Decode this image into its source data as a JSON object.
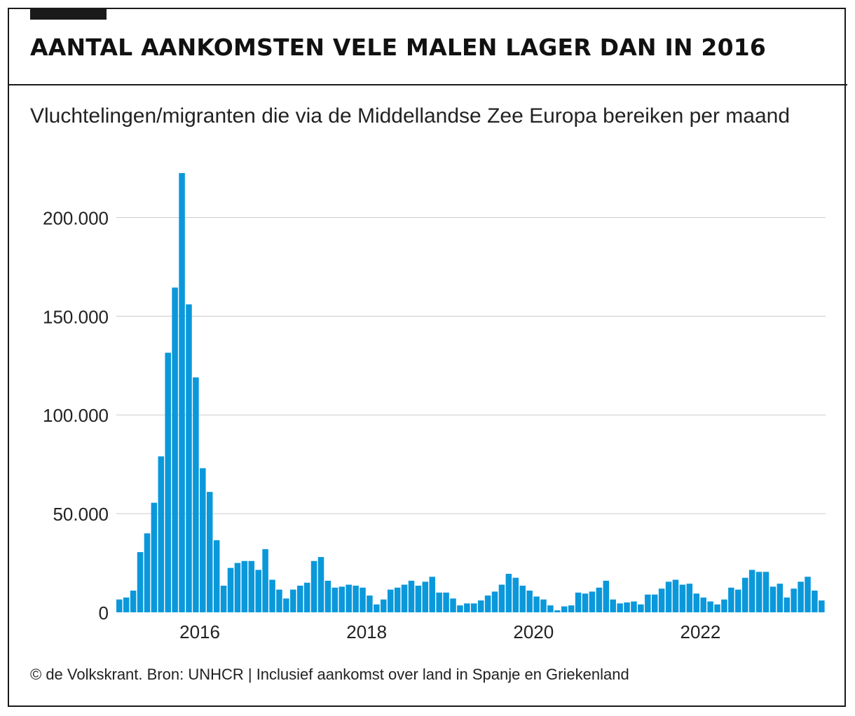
{
  "title": "AANTAL AANKOMSTEN VELE MALEN LAGER DAN IN 2016",
  "subtitle": "Vluchtelingen/migranten die via de Middellandse Zee Europa bereiken per maand",
  "footer": "© de Volkskrant. Bron: UNHCR | Inclusief aankomst over land in Spanje en Griekenland",
  "colors": {
    "bar": "#0a98db",
    "text": "#222222",
    "grid": "#cccccc",
    "frame": "#1a1a1a"
  },
  "chart_data": {
    "type": "bar",
    "x_start": "2015-01",
    "x_end": "2023-06",
    "xlim": [
      "2015-01",
      "2023-06"
    ],
    "x_ticks": [
      "2016",
      "2018",
      "2020",
      "2022"
    ],
    "y_ticks": [
      {
        "value": 0,
        "label": "0"
      },
      {
        "value": 50000,
        "label": "50.000"
      },
      {
        "value": 100000,
        "label": "100.000"
      },
      {
        "value": 150000,
        "label": "150.000"
      },
      {
        "value": 200000,
        "label": "200.000"
      }
    ],
    "ylim": [
      0,
      225000
    ],
    "grid": true,
    "values": [
      6500,
      7500,
      11000,
      30500,
      40000,
      55500,
      79000,
      131500,
      164500,
      222500,
      156000,
      119000,
      73000,
      61000,
      36500,
      13500,
      22500,
      25000,
      26000,
      26000,
      21500,
      32000,
      16500,
      11500,
      7000,
      11500,
      13500,
      15000,
      26000,
      28000,
      16000,
      12500,
      13000,
      14000,
      13500,
      12500,
      8500,
      4000,
      6500,
      11500,
      12500,
      14000,
      16000,
      13500,
      15500,
      18000,
      10000,
      10000,
      7000,
      3500,
      4500,
      4500,
      6000,
      8500,
      10500,
      14000,
      19500,
      17500,
      13500,
      11000,
      8000,
      6500,
      3500,
      1000,
      3000,
      3500,
      10000,
      9500,
      10500,
      12500,
      16000,
      6500,
      4500,
      5000,
      5500,
      4000,
      9000,
      9000,
      12000,
      15500,
      16500,
      14000,
      14500,
      9500,
      7500,
      5500,
      4000,
      6500,
      12500,
      11500,
      17500,
      21500,
      20500,
      20500,
      13000,
      14500,
      7500,
      12000,
      15500,
      18000,
      11000,
      6000
    ]
  }
}
